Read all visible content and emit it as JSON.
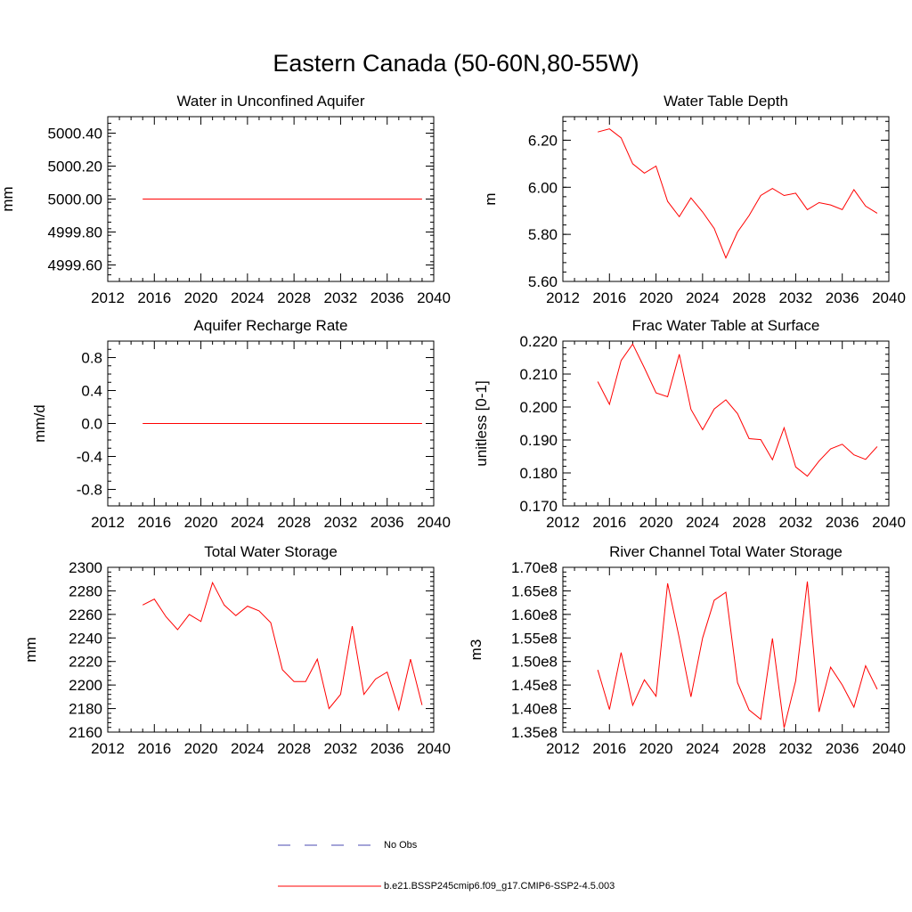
{
  "title": "Eastern Canada (50-60N,80-55W)",
  "colors": {
    "model": "#ff0000",
    "obs": "#4a4ab0",
    "axis": "#000000"
  },
  "legend": {
    "obs_label": "No Obs",
    "model_label": "b.e21.BSSP245cmip6.f09_g17.CMIP6-SSP2-4.5.003"
  },
  "chart_data": [
    {
      "type": "line",
      "title": "Water in Unconfined Aquifer",
      "xlabel": "",
      "ylabel": "mm",
      "xlim": [
        2012,
        2040
      ],
      "ylim": [
        4999.5,
        5000.5
      ],
      "xticks": [
        2012,
        2016,
        2020,
        2024,
        2028,
        2032,
        2036,
        2040
      ],
      "xtick_labels": [
        "2012",
        "2016",
        "2020",
        "2024",
        "2028",
        "2032",
        "2036",
        "2040"
      ],
      "yticks": [
        4999.6,
        4999.8,
        5000.0,
        5000.2,
        5000.4
      ],
      "ytick_labels": [
        "4999.60",
        "4999.80",
        "5000.00",
        "5000.20",
        "5000.40"
      ],
      "yminor_step": 0.04,
      "x": [
        2015,
        2016,
        2017,
        2018,
        2019,
        2020,
        2021,
        2022,
        2023,
        2024,
        2025,
        2026,
        2027,
        2028,
        2029,
        2030,
        2031,
        2032,
        2033,
        2034,
        2035,
        2036,
        2037,
        2038,
        2039
      ],
      "values": [
        5000,
        5000,
        5000,
        5000,
        5000,
        5000,
        5000,
        5000,
        5000,
        5000,
        5000,
        5000,
        5000,
        5000,
        5000,
        5000,
        5000,
        5000,
        5000,
        5000,
        5000,
        5000,
        5000,
        5000,
        5000
      ]
    },
    {
      "type": "line",
      "title": "Water Table Depth",
      "xlabel": "",
      "ylabel": "m",
      "xlim": [
        2012,
        2040
      ],
      "ylim": [
        5.6,
        6.3
      ],
      "xticks": [
        2012,
        2016,
        2020,
        2024,
        2028,
        2032,
        2036,
        2040
      ],
      "xtick_labels": [
        "2012",
        "2016",
        "2020",
        "2024",
        "2028",
        "2032",
        "2036",
        "2040"
      ],
      "yticks": [
        5.6,
        5.8,
        6.0,
        6.2
      ],
      "ytick_labels": [
        "5.60",
        "5.80",
        "6.00",
        "6.20"
      ],
      "yminor_step": 0.04,
      "x": [
        2015,
        2016,
        2017,
        2018,
        2019,
        2020,
        2021,
        2022,
        2023,
        2024,
        2025,
        2026,
        2027,
        2028,
        2029,
        2030,
        2031,
        2032,
        2033,
        2034,
        2035,
        2036,
        2037,
        2038,
        2039
      ],
      "values": [
        6.235,
        6.248,
        6.21,
        6.1,
        6.06,
        6.09,
        5.94,
        5.875,
        5.955,
        5.895,
        5.825,
        5.7,
        5.81,
        5.88,
        5.965,
        5.995,
        5.965,
        5.975,
        5.905,
        5.935,
        5.925,
        5.905,
        5.99,
        5.92,
        5.89
      ]
    },
    {
      "type": "line",
      "title": "Aquifer Recharge Rate",
      "xlabel": "",
      "ylabel": "mm/d",
      "xlim": [
        2012,
        2040
      ],
      "ylim": [
        -1.0,
        1.0
      ],
      "xticks": [
        2012,
        2016,
        2020,
        2024,
        2028,
        2032,
        2036,
        2040
      ],
      "xtick_labels": [
        "2012",
        "2016",
        "2020",
        "2024",
        "2028",
        "2032",
        "2036",
        "2040"
      ],
      "yticks": [
        -0.8,
        -0.4,
        0.0,
        0.4,
        0.8
      ],
      "ytick_labels": [
        "-0.8",
        "-0.4",
        "0.0",
        "0.4",
        "0.8"
      ],
      "yminor_step": 0.1,
      "x": [
        2015,
        2016,
        2017,
        2018,
        2019,
        2020,
        2021,
        2022,
        2023,
        2024,
        2025,
        2026,
        2027,
        2028,
        2029,
        2030,
        2031,
        2032,
        2033,
        2034,
        2035,
        2036,
        2037,
        2038,
        2039
      ],
      "values": [
        0,
        0,
        0,
        0,
        0,
        0,
        0,
        0,
        0,
        0,
        0,
        0,
        0,
        0,
        0,
        0,
        0,
        0,
        0,
        0,
        0,
        0,
        0,
        0,
        0
      ]
    },
    {
      "type": "line",
      "title": "Frac Water Table at Surface",
      "xlabel": "",
      "ylabel": "unitless [0-1]",
      "xlim": [
        2012,
        2040
      ],
      "ylim": [
        0.17,
        0.22
      ],
      "xticks": [
        2012,
        2016,
        2020,
        2024,
        2028,
        2032,
        2036,
        2040
      ],
      "xtick_labels": [
        "2012",
        "2016",
        "2020",
        "2024",
        "2028",
        "2032",
        "2036",
        "2040"
      ],
      "yticks": [
        0.17,
        0.18,
        0.19,
        0.2,
        0.21,
        0.22
      ],
      "ytick_labels": [
        "0.170",
        "0.180",
        "0.190",
        "0.200",
        "0.210",
        "0.220"
      ],
      "yminor_step": 0.002,
      "x": [
        2015,
        2016,
        2017,
        2018,
        2019,
        2020,
        2021,
        2022,
        2023,
        2024,
        2025,
        2026,
        2027,
        2028,
        2029,
        2030,
        2031,
        2032,
        2033,
        2034,
        2035,
        2036,
        2037,
        2038,
        2039
      ],
      "values": [
        0.2077,
        0.2008,
        0.2141,
        0.2191,
        0.2119,
        0.2043,
        0.2031,
        0.216,
        0.1993,
        0.1931,
        0.1994,
        0.2022,
        0.198,
        0.1904,
        0.1901,
        0.184,
        0.1937,
        0.1818,
        0.179,
        0.1836,
        0.1873,
        0.1887,
        0.1855,
        0.1841,
        0.188
      ]
    },
    {
      "type": "line",
      "title": "Total Water Storage",
      "xlabel": "",
      "ylabel": "mm",
      "xlim": [
        2012,
        2040
      ],
      "ylim": [
        2160,
        2300
      ],
      "xticks": [
        2012,
        2016,
        2020,
        2024,
        2028,
        2032,
        2036,
        2040
      ],
      "xtick_labels": [
        "2012",
        "2016",
        "2020",
        "2024",
        "2028",
        "2032",
        "2036",
        "2040"
      ],
      "yticks": [
        2160,
        2180,
        2200,
        2220,
        2240,
        2260,
        2280,
        2300
      ],
      "ytick_labels": [
        "2160",
        "2180",
        "2200",
        "2220",
        "2240",
        "2260",
        "2280",
        "2300"
      ],
      "yminor_step": 4,
      "x": [
        2015,
        2016,
        2017,
        2018,
        2019,
        2020,
        2021,
        2022,
        2023,
        2024,
        2025,
        2026,
        2027,
        2028,
        2029,
        2030,
        2031,
        2032,
        2033,
        2034,
        2035,
        2036,
        2037,
        2038,
        2039
      ],
      "values": [
        2268,
        2273,
        2258,
        2247,
        2260,
        2254,
        2287,
        2268,
        2259,
        2267,
        2263,
        2253,
        2213,
        2203,
        2203,
        2222,
        2180,
        2192,
        2250,
        2192,
        2205,
        2211,
        2179,
        2222,
        2183
      ]
    },
    {
      "type": "line",
      "title": "River Channel Total Water Storage",
      "xlabel": "",
      "ylabel": "m3",
      "xlim": [
        2012,
        2040
      ],
      "ylim": [
        135000000,
        170000000
      ],
      "xticks": [
        2012,
        2016,
        2020,
        2024,
        2028,
        2032,
        2036,
        2040
      ],
      "xtick_labels": [
        "2012",
        "2016",
        "2020",
        "2024",
        "2028",
        "2032",
        "2036",
        "2040"
      ],
      "yticks": [
        135000000,
        140000000,
        145000000,
        150000000,
        155000000,
        160000000,
        165000000,
        170000000
      ],
      "ytick_labels": [
        "1.35e8",
        "1.40e8",
        "1.45e8",
        "1.50e8",
        "1.55e8",
        "1.60e8",
        "1.65e8",
        "1.70e8"
      ],
      "yminor_step": 1000000,
      "x": [
        2015,
        2016,
        2017,
        2018,
        2019,
        2020,
        2021,
        2022,
        2023,
        2024,
        2025,
        2026,
        2027,
        2028,
        2029,
        2030,
        2031,
        2032,
        2033,
        2034,
        2035,
        2036,
        2037,
        2038,
        2039
      ],
      "values": [
        148200000,
        139800000,
        151900000,
        140700000,
        146100000,
        142600000,
        166600000,
        155000000,
        142500000,
        155000000,
        163000000,
        164700000,
        145500000,
        139700000,
        137700000,
        154900000,
        135900000,
        145900000,
        167000000,
        139300000,
        148800000,
        145000000,
        140300000,
        149100000,
        144100000
      ]
    }
  ]
}
